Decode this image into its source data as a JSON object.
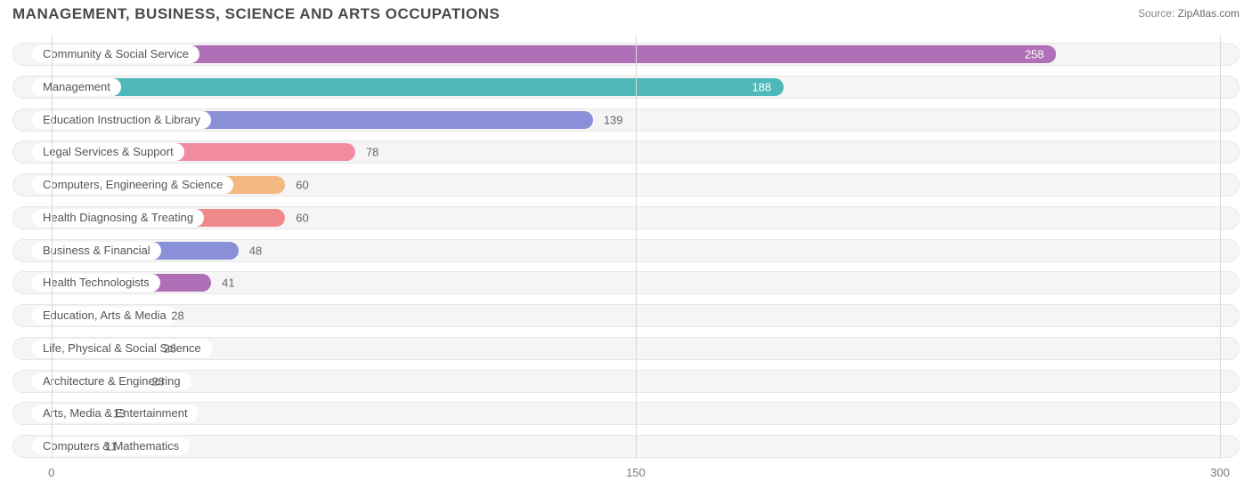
{
  "title": "MANAGEMENT, BUSINESS, SCIENCE AND ARTS OCCUPATIONS",
  "source_label": "Source:",
  "source_value": "ZipAtlas.com",
  "chart": {
    "type": "bar-horizontal",
    "xmin": -10,
    "xmax": 305,
    "grid_color": "#d8d8d8",
    "track_bg": "#f5f5f6",
    "track_border": "#e7e7e9",
    "label_bg": "#ffffff",
    "label_color": "#555555",
    "value_color": "#666666",
    "xticks": [
      {
        "pos": 0,
        "label": "0"
      },
      {
        "pos": 150,
        "label": "150"
      },
      {
        "pos": 300,
        "label": "300"
      }
    ],
    "bars": [
      {
        "label": "Community & Social Service",
        "value": 258,
        "color": "#b070b8",
        "value_inside": true
      },
      {
        "label": "Management",
        "value": 188,
        "color": "#4fb8b8",
        "value_inside": true
      },
      {
        "label": "Education Instruction & Library",
        "value": 139,
        "color": "#8a90d8",
        "value_inside": false
      },
      {
        "label": "Legal Services & Support",
        "value": 78,
        "color": "#f28ca0",
        "value_inside": false
      },
      {
        "label": "Computers, Engineering & Science",
        "value": 60,
        "color": "#f4b880",
        "value_inside": false
      },
      {
        "label": "Health Diagnosing & Treating",
        "value": 60,
        "color": "#f08a8a",
        "value_inside": false
      },
      {
        "label": "Business & Financial",
        "value": 48,
        "color": "#8a90d8",
        "value_inside": false
      },
      {
        "label": "Health Technologists",
        "value": 41,
        "color": "#b070b8",
        "value_inside": false
      },
      {
        "label": "Education, Arts & Media",
        "value": 28,
        "color": "#7dd0c8",
        "value_inside": false
      },
      {
        "label": "Life, Physical & Social Science",
        "value": 26,
        "color": "#8a90d8",
        "value_inside": false
      },
      {
        "label": "Architecture & Engineering",
        "value": 23,
        "color": "#f28ca0",
        "value_inside": false
      },
      {
        "label": "Arts, Media & Entertainment",
        "value": 13,
        "color": "#f4b880",
        "value_inside": false
      },
      {
        "label": "Computers & Mathematics",
        "value": 11,
        "color": "#f08a8a",
        "value_inside": false
      }
    ]
  }
}
